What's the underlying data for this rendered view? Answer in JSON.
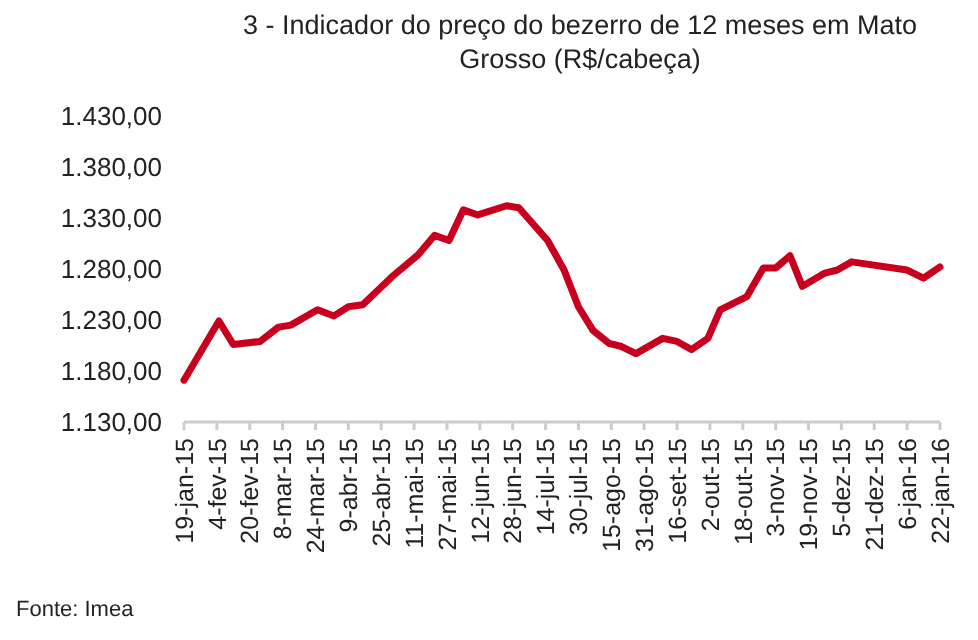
{
  "chart_data": {
    "type": "line",
    "title": "3 - Indicador do preço do bezerro de 12 meses em Mato Grosso (R$/cabeça)",
    "x": [
      "2015-01-19",
      "2015-02-05",
      "2015-02-12",
      "2015-02-25",
      "2015-03-06",
      "2015-03-12",
      "2015-03-25",
      "2015-04-02",
      "2015-04-09",
      "2015-04-16",
      "2015-04-30",
      "2015-05-13",
      "2015-05-21",
      "2015-05-28",
      "2015-06-04",
      "2015-06-11",
      "2015-06-25",
      "2015-07-01",
      "2015-07-15",
      "2015-07-23",
      "2015-07-30",
      "2015-08-06",
      "2015-08-14",
      "2015-08-20",
      "2015-08-27",
      "2015-09-09",
      "2015-09-16",
      "2015-09-23",
      "2015-10-01",
      "2015-10-07",
      "2015-10-20",
      "2015-10-28",
      "2015-11-03",
      "2015-11-10",
      "2015-11-16",
      "2015-11-27",
      "2015-12-03",
      "2015-12-10",
      "2016-01-06",
      "2016-01-14",
      "2016-01-22"
    ],
    "series": [
      {
        "color": "#c8001e",
        "values": [
          1171,
          1229,
          1206,
          1209,
          1223,
          1225,
          1240,
          1234,
          1243,
          1245,
          1272,
          1294,
          1313,
          1308,
          1338,
          1333,
          1342,
          1340,
          1308,
          1279,
          1243,
          1220,
          1207,
          1204,
          1197,
          1212,
          1209,
          1201,
          1212,
          1240,
          1253,
          1281,
          1281,
          1293,
          1263,
          1276,
          1279,
          1287,
          1279,
          1271,
          1282
        ]
      }
    ],
    "xlim": [
      "2015-01-19",
      "2016-01-22"
    ],
    "xticks": [
      {
        "value": "2015-01-19",
        "label": "19-jan-15"
      },
      {
        "value": "2015-02-04",
        "label": "4-fev-15"
      },
      {
        "value": "2015-02-20",
        "label": "20-fev-15"
      },
      {
        "value": "2015-03-08",
        "label": "8-mar-15"
      },
      {
        "value": "2015-03-24",
        "label": "24-mar-15"
      },
      {
        "value": "2015-04-09",
        "label": "9-abr-15"
      },
      {
        "value": "2015-04-25",
        "label": "25-abr-15"
      },
      {
        "value": "2015-05-11",
        "label": "11-mai-15"
      },
      {
        "value": "2015-05-27",
        "label": "27-mai-15"
      },
      {
        "value": "2015-06-12",
        "label": "12-jun-15"
      },
      {
        "value": "2015-06-28",
        "label": "28-jun-15"
      },
      {
        "value": "2015-07-14",
        "label": "14-jul-15"
      },
      {
        "value": "2015-07-30",
        "label": "30-jul-15"
      },
      {
        "value": "2015-08-15",
        "label": "15-ago-15"
      },
      {
        "value": "2015-08-31",
        "label": "31-ago-15"
      },
      {
        "value": "2015-09-16",
        "label": "16-set-15"
      },
      {
        "value": "2015-10-02",
        "label": "2-out-15"
      },
      {
        "value": "2015-10-18",
        "label": "18-out-15"
      },
      {
        "value": "2015-11-03",
        "label": "3-nov-15"
      },
      {
        "value": "2015-11-19",
        "label": "19-nov-15"
      },
      {
        "value": "2015-12-05",
        "label": "5-dez-15"
      },
      {
        "value": "2015-12-21",
        "label": "21-dez-15"
      },
      {
        "value": "2016-01-06",
        "label": "6-jan-16"
      },
      {
        "value": "2016-01-22",
        "label": "22-jan-16"
      }
    ],
    "ylim": [
      1130,
      1430
    ],
    "yticks": [
      {
        "value": 1130,
        "label": "1.130,00"
      },
      {
        "value": 1180,
        "label": "1.180,00"
      },
      {
        "value": 1230,
        "label": "1.230,00"
      },
      {
        "value": 1280,
        "label": "1.280,00"
      },
      {
        "value": 1330,
        "label": "1.330,00"
      },
      {
        "value": 1380,
        "label": "1.380,00"
      },
      {
        "value": 1430,
        "label": "1.430,00"
      }
    ],
    "grid": false,
    "marker": "none",
    "line_style": "solid",
    "annotations": [
      "Fonte: Imea"
    ]
  }
}
